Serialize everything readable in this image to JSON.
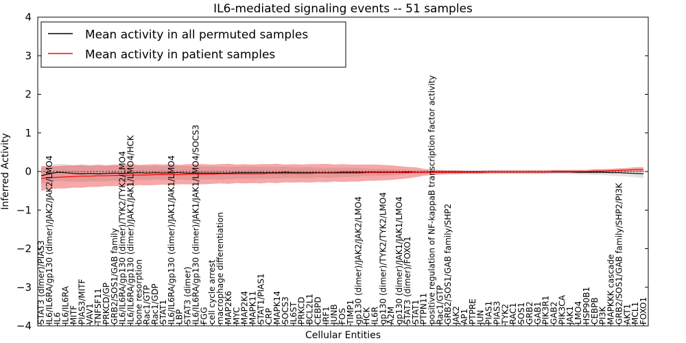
{
  "chart_data": {
    "type": "line",
    "title": "IL6-mediated signaling events -- 51 samples",
    "xlabel": "Cellular Entities",
    "ylabel": "Inferred Activity",
    "ylim": [
      -4,
      4
    ],
    "yticks": [
      -4,
      -3,
      -2,
      -1,
      0,
      1,
      2,
      3,
      4
    ],
    "grid": false,
    "reference_line": 0,
    "legend": {
      "placement": "top-left",
      "entries": [
        {
          "label": "Mean activity in all permuted samples",
          "color": "#000000"
        },
        {
          "label": "Mean activity in patient samples",
          "color": "#ff0000"
        }
      ]
    },
    "categories": [
      "STAT3 (dimer)/PIAS3",
      "IL6/IL6RA/gp130 (dimer)/JAK2/JAK2/LMO4",
      "IL6",
      "IL6/IL6RA",
      "MITF",
      "PIAS3/MITF",
      "VAV1",
      "TNFSF11",
      "PRKCD/GP",
      "GRB2/SOS1/GAB family",
      "IL6/IL6RA/gp130 (dimer)/TYK2/TYK2/LMO4",
      "IL6/IL6RA/gp130 (dimer)/JAK1/JAK1/LMO4/HCK",
      "bone resorption",
      "Rac1/GTP",
      "Rac1/GDP",
      "STAT1",
      "IL6/IL6RA/gp130 (dimer)/JAK1/JAK1/LMO4",
      "LBP",
      "STAT3 (dimer)",
      "IL6/IL6RA/gp130 (dimer)/JAK1/JAK1/LMO4/SOCS3",
      "FGG",
      "cell cycle arrest",
      "macrophage differentiation",
      "MAP2K6",
      "MYC",
      "MAP2K4",
      "MAPK11",
      "STAT1/PIAS1",
      "CRP",
      "MAPK14",
      "SOCS3",
      "IL6ST",
      "PRKCD",
      "BCL2L1",
      "CEBPD",
      "IRF1",
      "JUNB",
      "FOS",
      "TIMP1",
      "gp130 (dimer)/JAK2/JAK2/LMO4",
      "HCK",
      "IL6R",
      "gp130 (dimer)/TYK2/TYK2/LMO4",
      "A2M",
      "gp130 (dimer)/JAK1/JAK1/LMO4",
      "STAT3 (dimer)/FOXO1",
      "STAT1",
      "PTPN11",
      "positive regulation of NF-kappaB transcription factor activity",
      "Rac1/GTP",
      "GRB2/SOS1/GAB family/SHP2",
      "JAK2",
      "AP1",
      "PTPRE",
      "JUN",
      "PIAS1",
      "PIAS3",
      "TYK2",
      "RAC1",
      "SOS1",
      "GRB2",
      "GAB1",
      "PIK3R1",
      "GAB2",
      "PIK3CA",
      "JAK1",
      "LMO4",
      "HSP90B1",
      "CEBPB",
      "PI3K",
      "MAPKKK cascade",
      "GRB2/SOS1/GAB family/SHP2/PI3K",
      "AKT1",
      "MCL1",
      "FOXO1"
    ],
    "series": [
      {
        "name": "Mean activity in all permuted samples",
        "color": "#000000",
        "values": [
          -0.11,
          -0.06,
          -0.02,
          -0.03,
          -0.05,
          -0.06,
          -0.05,
          -0.06,
          -0.05,
          -0.04,
          -0.05,
          -0.04,
          -0.03,
          -0.04,
          -0.03,
          -0.04,
          -0.03,
          -0.03,
          -0.04,
          -0.04,
          -0.04,
          -0.04,
          -0.04,
          -0.04,
          -0.03,
          -0.03,
          -0.03,
          -0.03,
          -0.03,
          -0.03,
          -0.02,
          -0.03,
          -0.03,
          -0.03,
          -0.03,
          -0.03,
          -0.03,
          -0.02,
          -0.02,
          -0.02,
          -0.02,
          -0.02,
          -0.02,
          -0.02,
          -0.02,
          -0.01,
          -0.02,
          -0.02,
          -0.01,
          -0.01,
          -0.01,
          -0.01,
          -0.01,
          -0.01,
          -0.01,
          -0.01,
          -0.01,
          -0.01,
          -0.01,
          -0.01,
          -0.01,
          -0.01,
          -0.01,
          -0.01,
          -0.01,
          -0.01,
          -0.02,
          -0.02,
          -0.02,
          -0.02,
          -0.03,
          -0.03,
          -0.04,
          -0.05,
          -0.06
        ],
        "band": [
          0.2,
          0.22,
          0.22,
          0.22,
          0.21,
          0.21,
          0.2,
          0.2,
          0.2,
          0.2,
          0.2,
          0.19,
          0.19,
          0.18,
          0.18,
          0.18,
          0.18,
          0.18,
          0.18,
          0.17,
          0.17,
          0.17,
          0.17,
          0.16,
          0.16,
          0.16,
          0.16,
          0.15,
          0.15,
          0.15,
          0.15,
          0.14,
          0.14,
          0.14,
          0.13,
          0.13,
          0.13,
          0.12,
          0.12,
          0.11,
          0.1,
          0.09,
          0.09,
          0.08,
          0.07,
          0.06,
          0.05,
          0.05,
          0.05,
          0.05,
          0.05,
          0.05,
          0.05,
          0.05,
          0.05,
          0.05,
          0.05,
          0.05,
          0.05,
          0.05,
          0.05,
          0.05,
          0.05,
          0.05,
          0.05,
          0.05,
          0.06,
          0.06,
          0.07,
          0.07,
          0.08,
          0.09,
          0.09,
          0.1,
          0.11
        ]
      },
      {
        "name": "Mean activity in patient samples",
        "color": "#ff0000",
        "values": [
          -0.18,
          -0.16,
          -0.15,
          -0.14,
          -0.13,
          -0.12,
          -0.12,
          -0.11,
          -0.11,
          -0.1,
          -0.1,
          -0.09,
          -0.09,
          -0.09,
          -0.08,
          -0.08,
          -0.08,
          -0.08,
          -0.07,
          -0.07,
          -0.07,
          -0.07,
          -0.06,
          -0.06,
          -0.06,
          -0.06,
          -0.06,
          -0.06,
          -0.05,
          -0.05,
          -0.05,
          -0.05,
          -0.05,
          -0.05,
          -0.04,
          -0.04,
          -0.04,
          -0.04,
          -0.04,
          -0.04,
          -0.03,
          -0.03,
          -0.03,
          -0.03,
          -0.03,
          -0.03,
          -0.02,
          -0.02,
          -0.02,
          -0.02,
          -0.02,
          -0.02,
          -0.02,
          -0.02,
          -0.02,
          -0.01,
          -0.01,
          -0.01,
          -0.01,
          -0.01,
          -0.01,
          -0.01,
          -0.01,
          0.0,
          0.0,
          0.0,
          0.0,
          0.0,
          0.01,
          0.01,
          0.02,
          0.03,
          0.04,
          0.05,
          0.05
        ],
        "band": [
          0.32,
          0.3,
          0.29,
          0.3,
          0.29,
          0.3,
          0.28,
          0.29,
          0.27,
          0.28,
          0.27,
          0.29,
          0.26,
          0.27,
          0.27,
          0.26,
          0.27,
          0.25,
          0.26,
          0.26,
          0.26,
          0.25,
          0.25,
          0.26,
          0.24,
          0.25,
          0.24,
          0.25,
          0.24,
          0.25,
          0.23,
          0.24,
          0.23,
          0.24,
          0.23,
          0.24,
          0.22,
          0.23,
          0.22,
          0.22,
          0.21,
          0.21,
          0.2,
          0.19,
          0.17,
          0.15,
          0.13,
          0.09,
          0.07,
          0.06,
          0.05,
          0.05,
          0.04,
          0.04,
          0.04,
          0.04,
          0.04,
          0.04,
          0.04,
          0.04,
          0.04,
          0.04,
          0.04,
          0.04,
          0.04,
          0.04,
          0.04,
          0.04,
          0.05,
          0.05,
          0.05,
          0.05,
          0.05,
          0.06,
          0.06
        ]
      }
    ]
  }
}
